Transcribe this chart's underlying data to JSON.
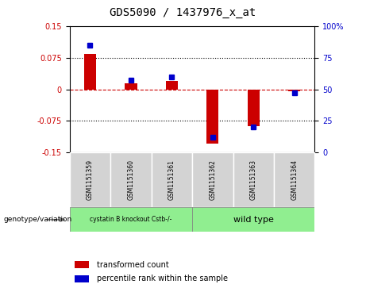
{
  "title": "GDS5090 / 1437976_x_at",
  "samples": [
    "GSM1151359",
    "GSM1151360",
    "GSM1151361",
    "GSM1151362",
    "GSM1151363",
    "GSM1151364"
  ],
  "transformed_count": [
    0.083,
    0.015,
    0.02,
    -0.128,
    -0.088,
    -0.005
  ],
  "percentile_rank": [
    85,
    57,
    60,
    12,
    20,
    47
  ],
  "ylim_left": [
    -0.15,
    0.15
  ],
  "ylim_right": [
    0,
    100
  ],
  "yticks_left": [
    -0.15,
    -0.075,
    0,
    0.075,
    0.15
  ],
  "yticks_right": [
    0,
    25,
    50,
    75,
    100
  ],
  "hlines": [
    0.075,
    -0.075
  ],
  "group1_label": "cystatin B knockout Cstb-/-",
  "group2_label": "wild type",
  "group1_indices": [
    0,
    1,
    2
  ],
  "group2_indices": [
    3,
    4,
    5
  ],
  "group1_color": "#90EE90",
  "group2_color": "#90EE90",
  "bar_color": "#CC0000",
  "dot_color": "#0000CC",
  "zero_line_color": "#CC0000",
  "background_plot": "#ffffff",
  "background_label": "#d3d3d3",
  "genotype_label": "genotype/variation",
  "legend_bar": "transformed count",
  "legend_dot": "percentile rank within the sample",
  "bar_width": 0.3
}
